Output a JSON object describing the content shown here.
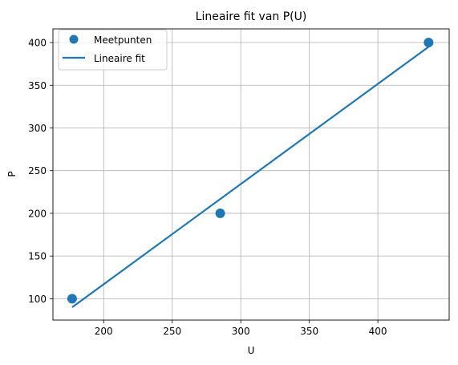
{
  "chart_data": {
    "type": "scatter",
    "title": "Lineaire fit van P(U)",
    "xlabel": "U",
    "ylabel": "P",
    "xlim": [
      163,
      452
    ],
    "ylim": [
      75,
      416
    ],
    "xticks": [
      200,
      250,
      300,
      350,
      400
    ],
    "yticks": [
      100,
      150,
      200,
      250,
      300,
      350,
      400
    ],
    "grid": true,
    "legend_position": "top-left",
    "series": [
      {
        "name": "Meetpunten",
        "kind": "scatter",
        "color": "#1f77b4",
        "points": [
          {
            "x": 177,
            "y": 100
          },
          {
            "x": 285,
            "y": 200
          },
          {
            "x": 437,
            "y": 400
          }
        ]
      },
      {
        "name": "Lineaire fit",
        "kind": "line",
        "color": "#1f77b4",
        "points": [
          {
            "x": 177,
            "y": 90
          },
          {
            "x": 437,
            "y": 395
          }
        ]
      }
    ]
  }
}
